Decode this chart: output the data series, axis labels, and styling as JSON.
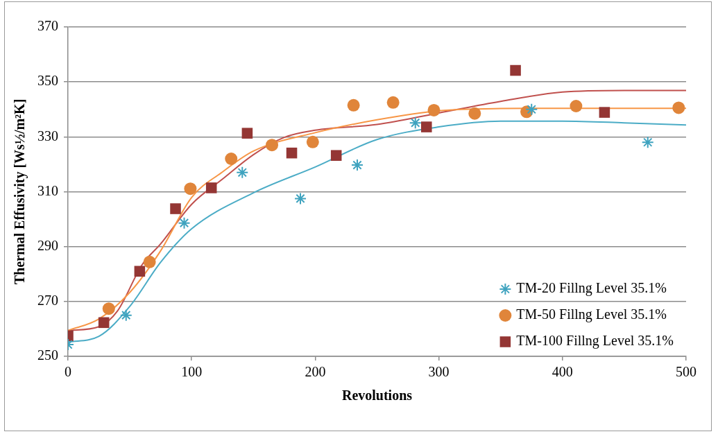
{
  "chart_data": {
    "type": "scatter",
    "xlabel": "Revolutions",
    "ylabel": "Thermal Effusivity [Ws½/m²K]",
    "xlim": [
      0,
      500
    ],
    "xticks": [
      0,
      100,
      200,
      300,
      400,
      500
    ],
    "ylim": [
      250,
      370
    ],
    "yticks": [
      250,
      270,
      290,
      310,
      330,
      350,
      370
    ],
    "grid": "y",
    "legend": "bottom right",
    "series": [
      {
        "name": "TM-20 Fillng Level 35.1%",
        "type": "scatter",
        "marker": "cross",
        "color": "#3fa3bf",
        "x": [
          0,
          47,
          94,
          141,
          188,
          234,
          281,
          375,
          469
        ],
        "values": [
          254.3,
          265,
          298.6,
          317,
          307.5,
          319.7,
          335.1,
          340,
          328
        ]
      },
      {
        "name": "TM-50 Fillng Level 35.1%",
        "type": "scatter",
        "marker": "circle",
        "color": "#e0853a",
        "x": [
          33,
          66,
          99,
          132,
          165,
          198,
          231,
          263,
          296,
          329,
          371,
          411,
          494
        ],
        "values": [
          267.4,
          284.4,
          311.1,
          322,
          327,
          328.1,
          341.5,
          342.5,
          339.7,
          338.5,
          339.1,
          341.2,
          340.6
        ]
      },
      {
        "name": "TM-100 Fillng Level 35.1%",
        "type": "scatter",
        "marker": "square",
        "color": "#943634",
        "x": [
          0,
          29,
          58,
          87,
          116,
          145,
          181,
          217,
          290,
          362,
          434
        ],
        "values": [
          257.5,
          262.3,
          281,
          303.8,
          311.4,
          331.3,
          324.1,
          323.2,
          333.6,
          354.2,
          338.9
        ]
      },
      {
        "type": "line",
        "marker": "none",
        "color": "#4bacc6",
        "x": [
          0,
          25,
          50,
          75,
          100,
          150,
          200,
          250,
          300,
          350,
          400,
          450,
          500
        ],
        "values": [
          255.2,
          257.3,
          268.2,
          284.3,
          296.5,
          309.6,
          319,
          329,
          333.6,
          335.7,
          335.7,
          335.1,
          334.3
        ]
      },
      {
        "type": "line",
        "marker": "none",
        "color": "#f79646",
        "x": [
          0,
          25,
          50,
          75,
          100,
          125,
          150,
          200,
          250,
          300,
          350,
          400,
          500
        ],
        "values": [
          259.4,
          263.6,
          273.3,
          288.5,
          307.9,
          317.2,
          324.8,
          331.5,
          336.2,
          339.5,
          340.3,
          340.4,
          340.4
        ]
      },
      {
        "type": "line",
        "marker": "none",
        "color": "#c0504d",
        "x": [
          0,
          25,
          40,
          60,
          75,
          100,
          125,
          150,
          175,
          200,
          250,
          300,
          350,
          400,
          450,
          500
        ],
        "values": [
          259.4,
          260.8,
          266.5,
          283.4,
          291,
          305.4,
          314.6,
          323.5,
          329.8,
          332.4,
          334.5,
          338.7,
          342.9,
          346.3,
          346.9,
          346.9
        ]
      }
    ]
  }
}
